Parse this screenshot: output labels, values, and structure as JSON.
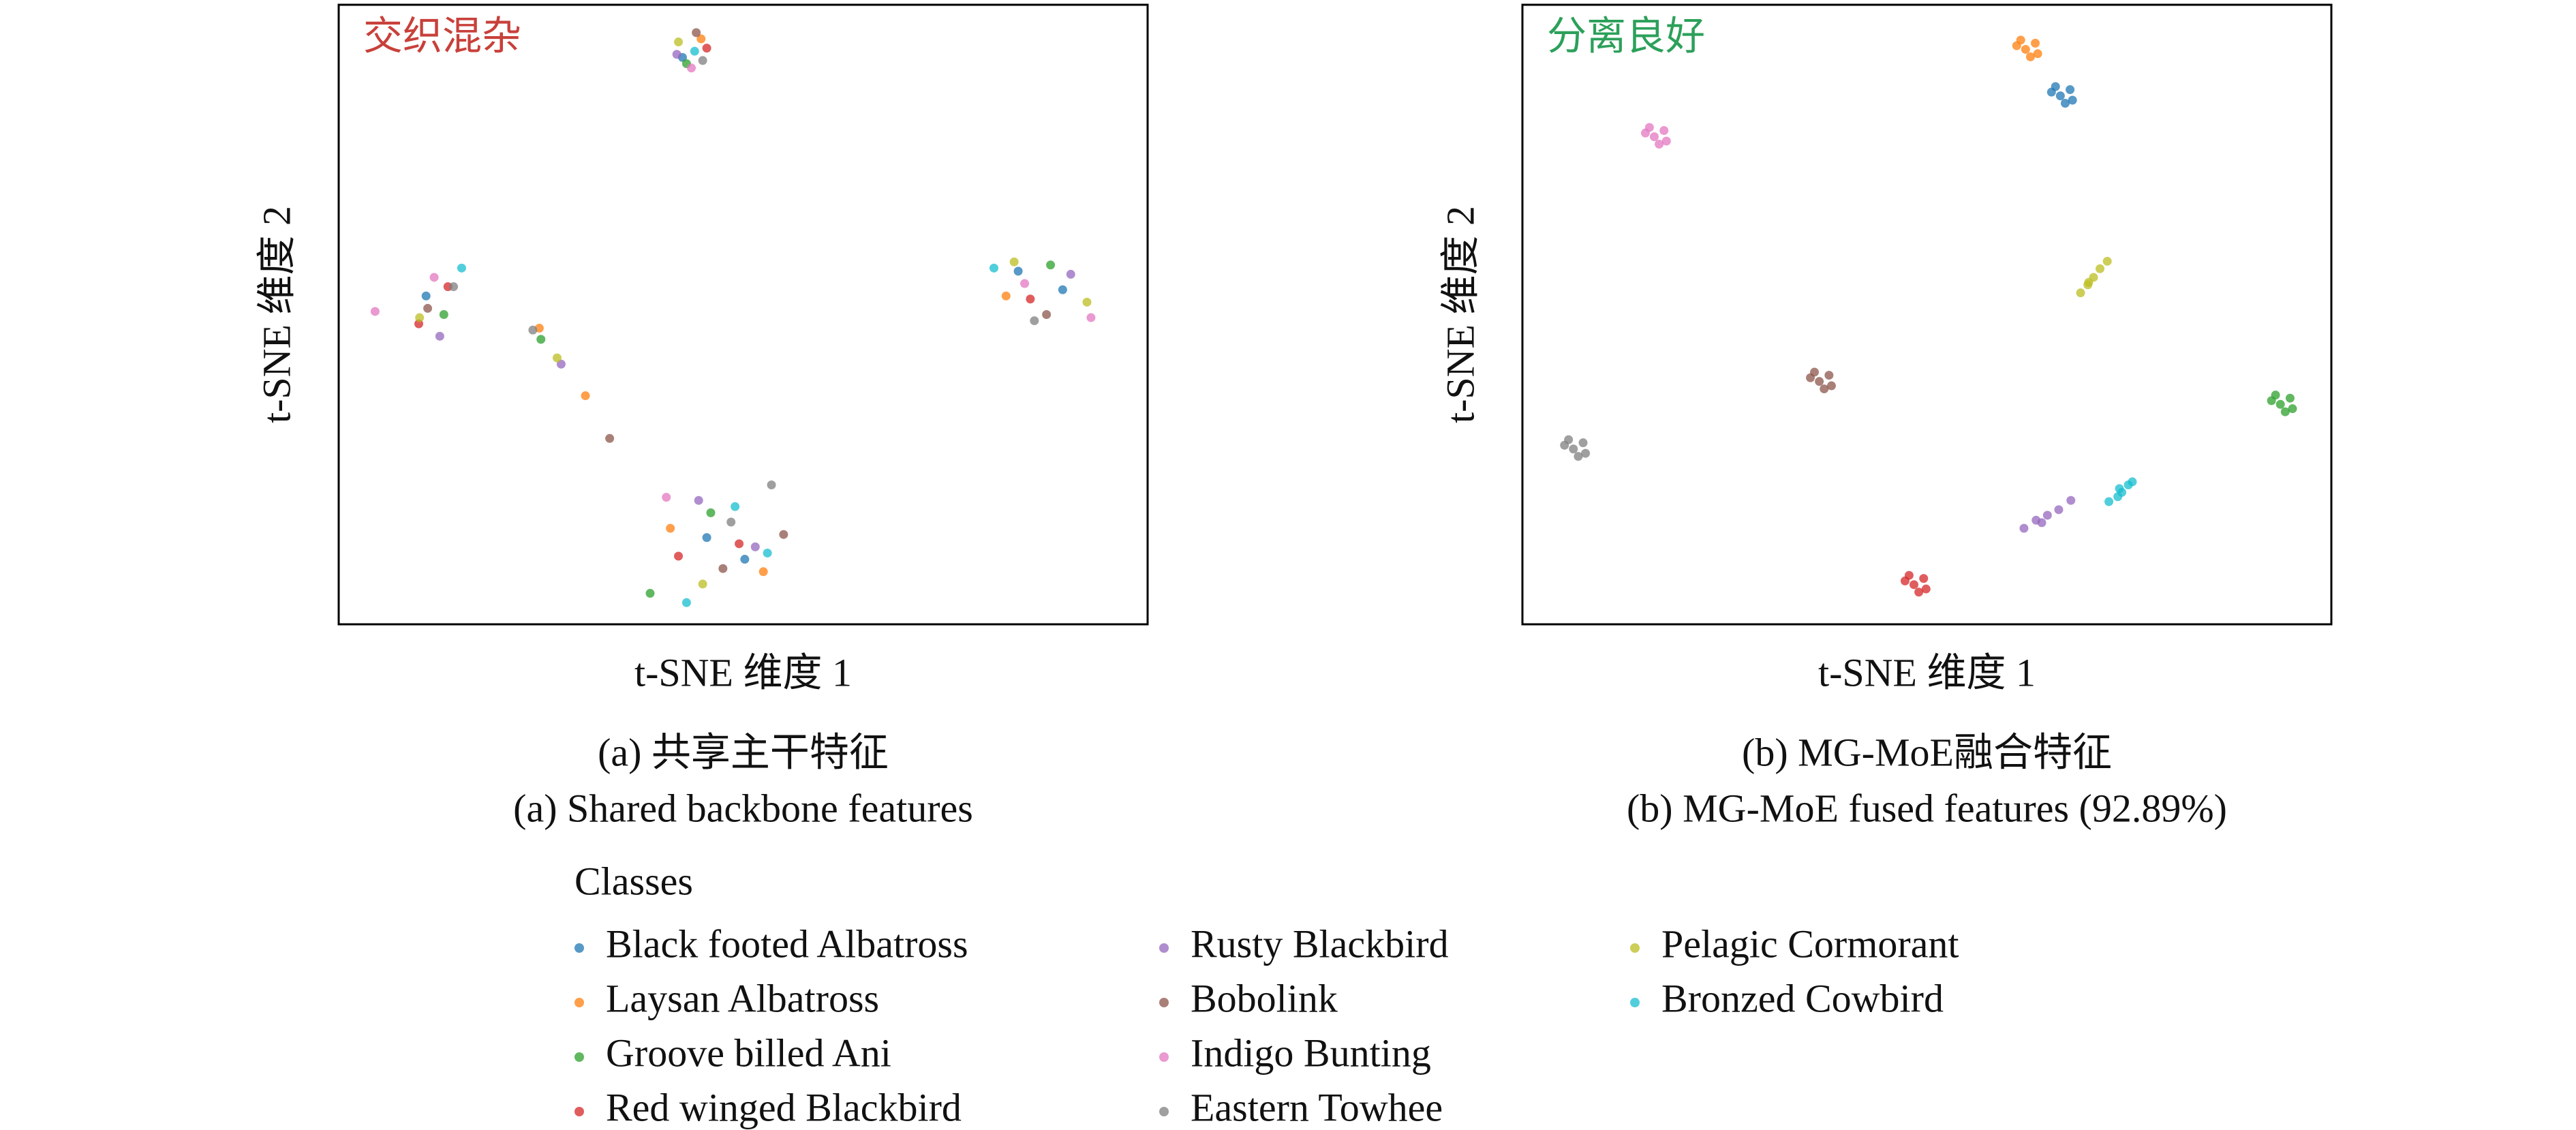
{
  "chart_data": [
    {
      "type": "scatter",
      "annotation": "交织混杂",
      "annotation_color": "#c8403a",
      "xlabel": "t-SNE 维度 1",
      "ylabel": "t-SNE 维度 2",
      "caption": [
        "(a) 共享主干特征",
        "(a) Shared backbone features"
      ],
      "legend_title": "Classes",
      "xlim": [
        0,
        100
      ],
      "ylim": [
        0,
        100
      ],
      "series": [
        {
          "name": "Black footed Albatross",
          "color": "#1f77b4",
          "x": [
            42.5,
            10.8,
            84.0,
            45.5,
            50.2,
            89.5
          ],
          "values": [
            91.5,
            53.0,
            57.0,
            14.0,
            10.5,
            54.0
          ]
        },
        {
          "name": "Laysan Albatross",
          "color": "#ff7f0e",
          "x": [
            44.8,
            24.8,
            30.5,
            82.5,
            41.0,
            52.5
          ],
          "values": [
            94.5,
            47.8,
            36.9,
            53.0,
            15.5,
            8.5
          ]
        },
        {
          "name": "Groove billed Ani",
          "color": "#2ca02c",
          "x": [
            43.0,
            13.0,
            25.0,
            88.0,
            46.0,
            38.5
          ],
          "values": [
            90.5,
            50.0,
            46.0,
            58.0,
            18.0,
            5.0
          ]
        },
        {
          "name": "Red winged Blackbird",
          "color": "#d62728",
          "x": [
            45.5,
            9.9,
            85.5,
            49.5,
            42.0,
            13.5
          ],
          "values": [
            93.0,
            48.5,
            52.5,
            13.0,
            11.0,
            54.5
          ]
        },
        {
          "name": "Rusty Blackbird",
          "color": "#9467bd",
          "x": [
            41.8,
            12.5,
            90.5,
            44.5,
            51.5,
            27.5
          ],
          "values": [
            92.0,
            46.5,
            56.5,
            20.0,
            12.5,
            42.0
          ]
        },
        {
          "name": "Bobolink",
          "color": "#8c564b",
          "x": [
            44.2,
            11.0,
            33.5,
            87.5,
            47.5,
            55.0
          ],
          "values": [
            95.5,
            51.0,
            30.0,
            50.0,
            9.0,
            14.5
          ]
        },
        {
          "name": "Indigo Bunting",
          "color": "#e377c2",
          "x": [
            43.6,
            4.5,
            11.8,
            84.8,
            40.5,
            93.0
          ],
          "values": [
            89.8,
            50.5,
            56.0,
            55.0,
            20.5,
            49.5
          ]
        },
        {
          "name": "Eastern Towhee",
          "color": "#7f7f7f",
          "x": [
            45.0,
            14.2,
            24.0,
            86.0,
            48.5,
            53.5
          ],
          "values": [
            91.0,
            54.5,
            47.5,
            49.0,
            16.5,
            22.5
          ]
        },
        {
          "name": "Pelagic Cormorant",
          "color": "#bcbd22",
          "x": [
            42.0,
            10.0,
            27.0,
            83.5,
            45.0,
            92.5
          ],
          "values": [
            94.0,
            49.5,
            43.0,
            58.5,
            6.5,
            52.0
          ]
        },
        {
          "name": "Bronzed Cowbird",
          "color": "#17becf",
          "x": [
            44.0,
            15.2,
            81.0,
            49.0,
            53.0,
            43.0
          ],
          "values": [
            92.5,
            57.5,
            57.5,
            19.0,
            11.5,
            3.5
          ]
        }
      ]
    },
    {
      "type": "scatter",
      "annotation": "分离良好",
      "annotation_color": "#2ca05a",
      "xlabel": "t-SNE 维度 1",
      "ylabel": "t-SNE 维度 2",
      "caption": [
        "(b) MG-MoE融合特征",
        "(b) MG-MoE fused features (92.89%)"
      ],
      "xlim": [
        0,
        100
      ],
      "ylim": [
        0,
        100
      ],
      "series": [
        {
          "name": "Black footed Albatross",
          "color": "#1f77b4",
          "x": [
            66.5,
            67.7,
            65.4,
            67.1,
            65.9,
            68.0
          ],
          "values": [
            85.3,
            86.3,
            85.9,
            84.1,
            86.8,
            84.6
          ]
        },
        {
          "name": "Laysan Albatross",
          "color": "#ff7f0e",
          "x": [
            62.2,
            63.4,
            61.1,
            62.8,
            61.6,
            63.7
          ],
          "values": [
            92.8,
            93.8,
            93.4,
            91.6,
            94.3,
            92.1
          ]
        },
        {
          "name": "Groove billed Ani",
          "color": "#2ca02c",
          "x": [
            93.7,
            94.9,
            92.6,
            94.3,
            93.1,
            95.2
          ],
          "values": [
            35.5,
            36.5,
            36.1,
            34.3,
            37.0,
            34.8
          ]
        },
        {
          "name": "Red winged Blackbird",
          "color": "#d62728",
          "x": [
            48.4,
            49.6,
            47.3,
            49.0,
            47.8,
            49.9
          ],
          "values": [
            6.4,
            7.4,
            7.0,
            5.2,
            7.9,
            5.7
          ]
        },
        {
          "name": "Rusty Blackbird",
          "color": "#9467bd",
          "x": [
            62.0,
            63.5,
            64.9,
            66.3,
            67.8,
            64.2
          ],
          "values": [
            15.5,
            16.8,
            17.6,
            18.5,
            20.0,
            16.4
          ]
        },
        {
          "name": "Bobolink",
          "color": "#8c564b",
          "x": [
            36.7,
            37.9,
            35.6,
            37.3,
            36.1,
            38.2
          ],
          "values": [
            39.2,
            40.2,
            39.8,
            38.0,
            40.7,
            38.5
          ]
        },
        {
          "name": "Indigo Bunting",
          "color": "#e377c2",
          "x": [
            16.3,
            17.5,
            15.2,
            16.9,
            15.7,
            17.8
          ],
          "values": [
            78.7,
            79.7,
            79.3,
            77.5,
            80.2,
            78.0
          ]
        },
        {
          "name": "Eastern Towhee",
          "color": "#7f7f7f",
          "x": [
            6.3,
            7.5,
            5.2,
            6.9,
            5.7,
            7.8
          ],
          "values": [
            28.3,
            29.3,
            28.9,
            27.1,
            29.8,
            27.6
          ]
        },
        {
          "name": "Pelagic Cormorant",
          "color": "#bcbd22",
          "x": [
            69.0,
            69.9,
            70.6,
            71.4,
            72.3,
            70.0
          ],
          "values": [
            53.5,
            54.8,
            56.0,
            57.4,
            58.6,
            55.2
          ]
        },
        {
          "name": "Bronzed Cowbird",
          "color": "#17becf",
          "x": [
            72.5,
            73.6,
            74.1,
            74.9,
            75.4,
            73.8
          ],
          "values": [
            19.8,
            20.6,
            21.3,
            22.5,
            23.0,
            21.9
          ]
        }
      ]
    }
  ]
}
